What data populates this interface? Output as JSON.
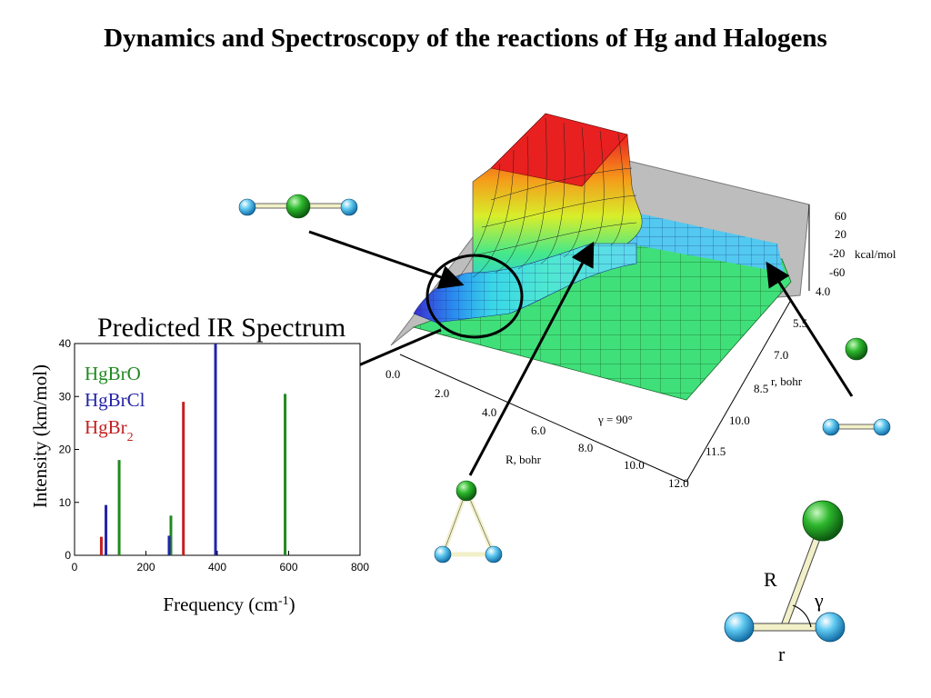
{
  "title": "Dynamics and Spectroscopy of the reactions of Hg and Halogens",
  "ir_panel": {
    "heading": "Predicted IR Spectrum",
    "xlabel_main": "Frequency (cm",
    "xlabel_sup": "-1",
    "xlabel_end": ")",
    "ylabel": "Intensity (km/mol)",
    "x_ticks": [
      "0",
      "200",
      "400",
      "600",
      "800"
    ],
    "y_ticks": [
      "0",
      "10",
      "20",
      "30",
      "40"
    ],
    "legend": [
      {
        "text": "HgBrO",
        "sub": "",
        "color": "#1f8a1f"
      },
      {
        "text": "HgBrCl",
        "sub": "",
        "color": "#2323a8"
      },
      {
        "text": "HgBr",
        "sub": "2",
        "color": "#c42020"
      }
    ]
  },
  "chart_data": {
    "type": "bar",
    "title": "Predicted IR Spectrum",
    "xlabel": "Frequency (cm-1)",
    "ylabel": "Intensity (km/mol)",
    "xlim": [
      0,
      800
    ],
    "ylim": [
      0,
      40
    ],
    "series": [
      {
        "name": "HgBrO",
        "color": "#1f8a1f",
        "x": [
          125,
          270,
          590
        ],
        "values": [
          18,
          7.5,
          30.5
        ]
      },
      {
        "name": "HgBrCl",
        "color": "#2323a8",
        "x": [
          88,
          265,
          395
        ],
        "values": [
          9.5,
          3.7,
          40
        ]
      },
      {
        "name": "HgBr2",
        "color": "#c42020",
        "x": [
          75,
          305
        ],
        "values": [
          3.5,
          29
        ]
      }
    ]
  },
  "surface_panel": {
    "z_ticks": [
      "60",
      "20",
      "-20",
      "-60"
    ],
    "z_unit": "kcal/mol",
    "r_ticks": [
      "4.0",
      "5.5",
      "7.0",
      "8.5",
      "10.0",
      "11.5"
    ],
    "r_label": "r, bohr",
    "R_ticks": [
      "0.0",
      "2.0",
      "4.0",
      "6.0",
      "8.0",
      "10.0",
      "12.0"
    ],
    "R_label": "R, bohr",
    "angle_label": "γ = 90°"
  },
  "geometry_diagram": {
    "label_R": "R",
    "label_gamma": "γ",
    "label_r": "r"
  },
  "colors": {
    "hg_atom": "#2db82d",
    "br_atom": "#5ec8f0",
    "arrow": "#000000"
  }
}
